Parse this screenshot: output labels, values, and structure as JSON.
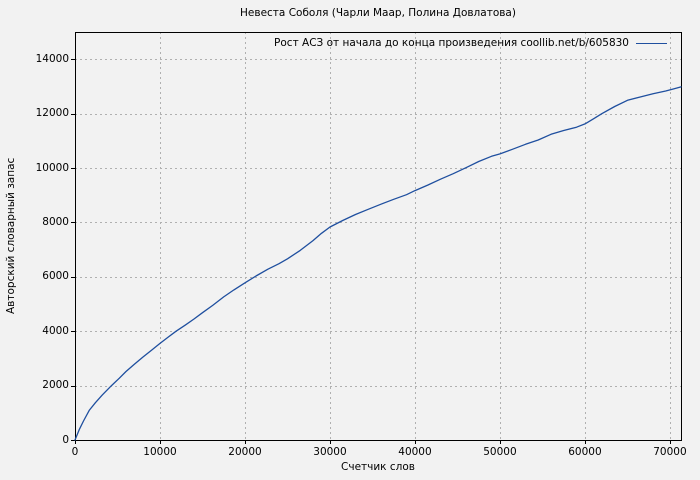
{
  "chart_data": {
    "type": "line",
    "title": "Невеста Соболя (Чарли Маар, Полина Довлатова)",
    "xlabel": "Счетчик слов",
    "ylabel": "Авторский словарный запас",
    "xlim": [
      0,
      71300
    ],
    "ylim": [
      0,
      15000
    ],
    "x_ticks": [
      0,
      10000,
      20000,
      30000,
      40000,
      50000,
      60000,
      70000
    ],
    "y_ticks": [
      0,
      2000,
      4000,
      6000,
      8000,
      10000,
      12000,
      14000
    ],
    "grid": true,
    "grid_style": "dashed",
    "legend_position": "top-right-inside",
    "colors": {
      "line": "#1f4f9f",
      "grid": "#b0b0b0",
      "border": "#000000",
      "background": "#f2f2f2",
      "text": "#000000"
    },
    "series": [
      {
        "name": "Рост АСЗ от начала до конца произведения coollib.net/b/605830",
        "points": [
          [
            0,
            0
          ],
          [
            500,
            380
          ],
          [
            1000,
            700
          ],
          [
            1700,
            1100
          ],
          [
            2400,
            1370
          ],
          [
            3200,
            1650
          ],
          [
            4300,
            2000
          ],
          [
            5200,
            2270
          ],
          [
            6000,
            2520
          ],
          [
            7000,
            2790
          ],
          [
            8000,
            3050
          ],
          [
            9000,
            3300
          ],
          [
            10000,
            3550
          ],
          [
            11000,
            3790
          ],
          [
            11900,
            4000
          ],
          [
            13000,
            4230
          ],
          [
            14000,
            4450
          ],
          [
            15000,
            4680
          ],
          [
            16200,
            4950
          ],
          [
            17500,
            5260
          ],
          [
            18700,
            5520
          ],
          [
            20000,
            5780
          ],
          [
            21300,
            6030
          ],
          [
            22700,
            6280
          ],
          [
            24000,
            6480
          ],
          [
            25000,
            6660
          ],
          [
            26500,
            6970
          ],
          [
            28000,
            7330
          ],
          [
            29000,
            7600
          ],
          [
            30000,
            7830
          ],
          [
            31500,
            8070
          ],
          [
            33000,
            8290
          ],
          [
            34500,
            8480
          ],
          [
            36000,
            8670
          ],
          [
            37500,
            8850
          ],
          [
            39000,
            9020
          ],
          [
            40000,
            9170
          ],
          [
            41500,
            9370
          ],
          [
            43000,
            9590
          ],
          [
            44500,
            9790
          ],
          [
            46000,
            10010
          ],
          [
            47500,
            10240
          ],
          [
            49000,
            10430
          ],
          [
            50000,
            10520
          ],
          [
            51500,
            10690
          ],
          [
            53000,
            10870
          ],
          [
            54500,
            11030
          ],
          [
            56000,
            11240
          ],
          [
            57500,
            11380
          ],
          [
            59000,
            11500
          ],
          [
            60000,
            11620
          ],
          [
            61000,
            11810
          ],
          [
            62000,
            12000
          ],
          [
            63500,
            12260
          ],
          [
            65000,
            12490
          ],
          [
            66500,
            12610
          ],
          [
            68000,
            12730
          ],
          [
            69500,
            12830
          ],
          [
            70500,
            12910
          ],
          [
            71300,
            12980
          ]
        ]
      }
    ]
  }
}
